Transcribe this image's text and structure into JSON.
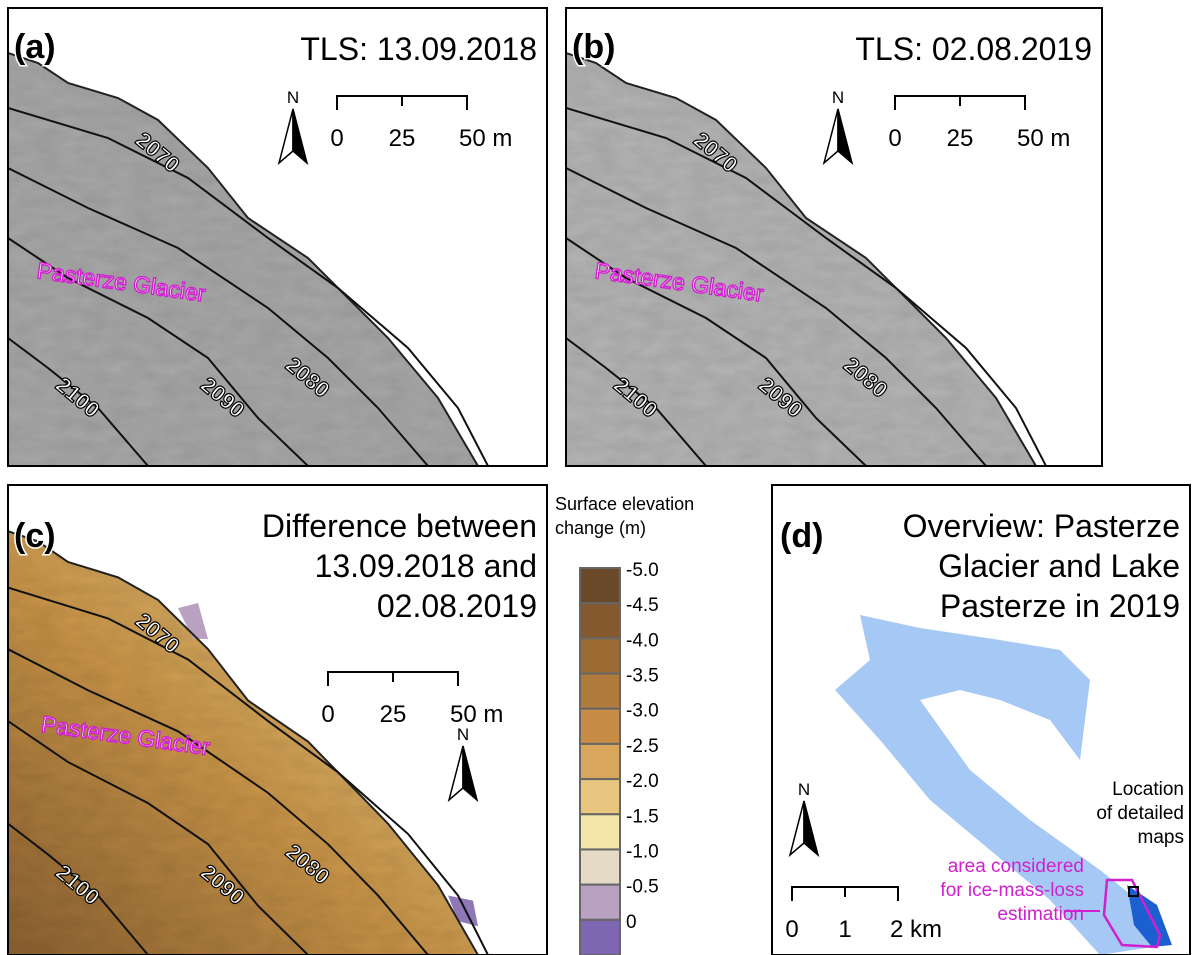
{
  "panels": [
    {
      "label": "(a)",
      "title": [
        "TLS: 13.09.2018"
      ],
      "north": "N",
      "scale_bar": [
        "0",
        "25",
        "50 m"
      ],
      "glacier_label": "Pasterze Glacier",
      "contours": [
        "2070",
        "2080",
        "2090",
        "2100"
      ]
    },
    {
      "label": "(b)",
      "title": [
        "TLS: 02.08.2019"
      ],
      "north": "N",
      "scale_bar": [
        "0",
        "25",
        "50 m"
      ],
      "glacier_label": "Pasterze Glacier",
      "contours": [
        "2070",
        "2080",
        "2090",
        "2100"
      ]
    },
    {
      "label": "(c)",
      "title": [
        "Difference between",
        "13.09.2018 and",
        "02.08.2019"
      ],
      "north": "N",
      "scale_bar": [
        "0",
        "25",
        "50 m"
      ],
      "glacier_label": "Pasterze Glacier",
      "contours": [
        "2070",
        "2080",
        "2090",
        "2100"
      ]
    },
    {
      "label": "(d)",
      "title": [
        "Overview: Pasterze",
        "Glacier and Lake",
        "Pasterze in 2019"
      ],
      "north": "N",
      "scale_bar": [
        "0",
        "1",
        "2 km"
      ],
      "location_note": [
        "Location",
        "of detailed",
        "maps"
      ],
      "area_note": [
        "area considered",
        "for ice-mass-loss",
        "estimation"
      ]
    }
  ],
  "legend": {
    "title": [
      "Surface elevation",
      "change (m)"
    ],
    "entries": [
      {
        "label": "-5.0",
        "color": "#6b4a2b"
      },
      {
        "label": "-4.5",
        "color": "#85592e"
      },
      {
        "label": "-4.0",
        "color": "#9c6b33"
      },
      {
        "label": "-3.5",
        "color": "#b17b3b"
      },
      {
        "label": "-3.0",
        "color": "#c68c45"
      },
      {
        "label": "-2.5",
        "color": "#d8a75c"
      },
      {
        "label": "-2.0",
        "color": "#e8c680"
      },
      {
        "label": "-1.5",
        "color": "#f4e6a8"
      },
      {
        "label": "-1.0",
        "color": "#e4dac6"
      },
      {
        "label": "-0.5",
        "color": "#b8a1c1"
      },
      {
        "label": "0",
        "color": "#7f66b2"
      }
    ]
  }
}
